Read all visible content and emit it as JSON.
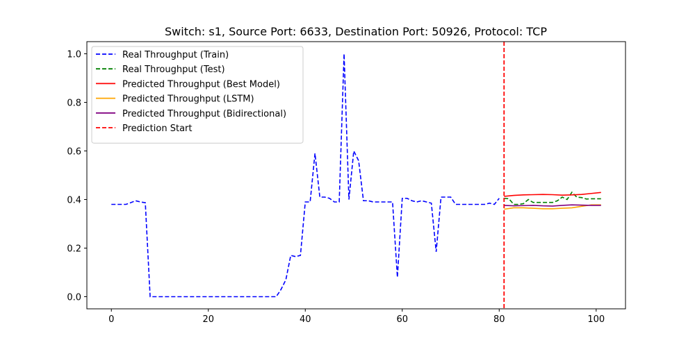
{
  "chart_data": {
    "type": "line",
    "title": "Switch: s1, Source Port: 6633, Destination Port: 50926, Protocol: TCP",
    "xlabel": "",
    "ylabel": "",
    "xlim": [
      -5.05,
      106.05
    ],
    "ylim": [
      -0.05,
      1.05
    ],
    "xticks": [
      0,
      20,
      40,
      60,
      80,
      100
    ],
    "yticks": [
      0.0,
      0.2,
      0.4,
      0.6,
      0.8,
      1.0
    ],
    "xtick_labels": [
      "0",
      "20",
      "40",
      "60",
      "80",
      "100"
    ],
    "ytick_labels": [
      "0.0",
      "0.2",
      "0.4",
      "0.6",
      "0.8",
      "1.0"
    ],
    "grid": false,
    "legend_position": "top-left",
    "series": [
      {
        "name": "Real Throughput (Train)",
        "color": "#0000ff",
        "style": "dashed",
        "x": [
          0,
          1,
          2,
          3,
          4,
          5,
          6,
          7,
          8,
          9,
          10,
          11,
          12,
          13,
          14,
          15,
          16,
          17,
          18,
          19,
          20,
          21,
          22,
          23,
          24,
          25,
          26,
          27,
          28,
          29,
          30,
          31,
          32,
          33,
          34,
          35,
          36,
          37,
          38,
          39,
          40,
          41,
          42,
          43,
          44,
          45,
          46,
          47,
          48,
          49,
          50,
          51,
          52,
          53,
          54,
          55,
          56,
          57,
          58,
          59,
          60,
          61,
          62,
          63,
          64,
          65,
          66,
          67,
          68,
          69,
          70,
          71,
          72,
          73,
          74,
          75,
          76,
          77,
          78,
          79,
          80
        ],
        "y": [
          0.38,
          0.38,
          0.38,
          0.38,
          0.387,
          0.395,
          0.39,
          0.387,
          0.0,
          0.0,
          0.0,
          0.0,
          0.0,
          0.0,
          0.0,
          0.0,
          0.0,
          0.0,
          0.0,
          0.0,
          0.0,
          0.0,
          0.0,
          0.0,
          0.0,
          0.0,
          0.0,
          0.0,
          0.0,
          0.0,
          0.0,
          0.0,
          0.0,
          0.0,
          0.0,
          0.03,
          0.07,
          0.17,
          0.165,
          0.17,
          0.39,
          0.39,
          0.59,
          0.41,
          0.41,
          0.405,
          0.39,
          0.39,
          1.0,
          0.4,
          0.6,
          0.56,
          0.395,
          0.395,
          0.39,
          0.39,
          0.39,
          0.39,
          0.39,
          0.08,
          0.405,
          0.405,
          0.395,
          0.39,
          0.395,
          0.39,
          0.385,
          0.185,
          0.41,
          0.41,
          0.41,
          0.38,
          0.38,
          0.38,
          0.38,
          0.38,
          0.38,
          0.38,
          0.385,
          0.38,
          0.405
        ]
      },
      {
        "name": "Real Throughput (Test)",
        "color": "#008000",
        "style": "dashed",
        "x": [
          81,
          82,
          83,
          84,
          85,
          86,
          87,
          88,
          89,
          90,
          91,
          92,
          93,
          94,
          95,
          96,
          97,
          98,
          99,
          100,
          101
        ],
        "y": [
          0.405,
          0.403,
          0.38,
          0.38,
          0.383,
          0.4,
          0.388,
          0.388,
          0.388,
          0.388,
          0.388,
          0.395,
          0.41,
          0.4,
          0.43,
          0.41,
          0.408,
          0.402,
          0.403,
          0.403,
          0.403
        ]
      },
      {
        "name": "Predicted Throughput (Best Model)",
        "color": "#ff0000",
        "style": "solid",
        "x": [
          81,
          83,
          85,
          87,
          89,
          91,
          93,
          95,
          97,
          99,
          101
        ],
        "y": [
          0.413,
          0.417,
          0.419,
          0.42,
          0.421,
          0.42,
          0.418,
          0.419,
          0.421,
          0.425,
          0.429
        ]
      },
      {
        "name": "Predicted Throughput (LSTM)",
        "color": "#ffa500",
        "style": "solid",
        "x": [
          81,
          83,
          85,
          87,
          89,
          91,
          93,
          95,
          97,
          99,
          101
        ],
        "y": [
          0.36,
          0.366,
          0.366,
          0.364,
          0.362,
          0.362,
          0.364,
          0.366,
          0.372,
          0.378,
          0.378
        ]
      },
      {
        "name": "Predicted Throughput (Bidirectional)",
        "color": "#800080",
        "style": "solid",
        "x": [
          81,
          83,
          85,
          87,
          89,
          91,
          93,
          95,
          97,
          99,
          101
        ],
        "y": [
          0.376,
          0.374,
          0.375,
          0.376,
          0.374,
          0.373,
          0.376,
          0.378,
          0.377,
          0.376,
          0.376
        ]
      }
    ],
    "vlines": [
      {
        "name": "Prediction Start",
        "x": 81,
        "color": "#ff0000",
        "style": "dashed"
      }
    ]
  }
}
